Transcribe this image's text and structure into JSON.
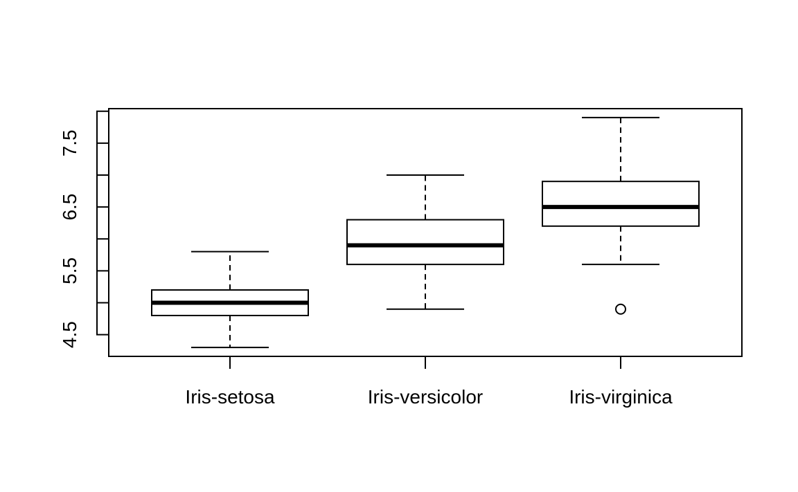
{
  "chart_data": {
    "type": "boxplot",
    "title": "",
    "xlabel": "",
    "ylabel": "",
    "ylim": [
      4.16,
      8.04
    ],
    "y_ticks": [
      "4.5",
      "5.5",
      "6.5",
      "7.5"
    ],
    "y_tick_positions": [
      4.5,
      5.0,
      5.5,
      6.0,
      6.5,
      7.0,
      7.5,
      8.0
    ],
    "grid": false,
    "legend": "none",
    "categories": [
      "Iris-setosa",
      "Iris-versicolor",
      "Iris-virginica"
    ],
    "boxes": [
      {
        "lower_whisker": 4.3,
        "q1": 4.8,
        "median": 5.0,
        "q3": 5.2,
        "upper_whisker": 5.8,
        "outliers": []
      },
      {
        "lower_whisker": 4.9,
        "q1": 5.6,
        "median": 5.9,
        "q3": 6.3,
        "upper_whisker": 7.0,
        "outliers": []
      },
      {
        "lower_whisker": 5.6,
        "q1": 6.2,
        "median": 6.5,
        "q3": 6.9,
        "upper_whisker": 7.9,
        "outliers": [
          4.9
        ]
      }
    ],
    "colors": {
      "box_fill": "#ffffff",
      "stroke": "#000000"
    }
  }
}
